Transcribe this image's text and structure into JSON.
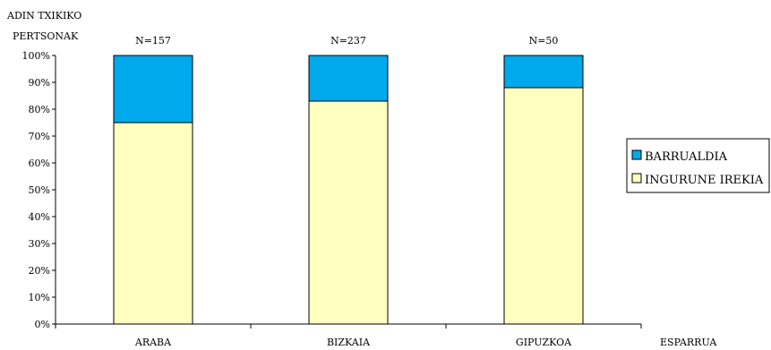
{
  "chart_data": {
    "type": "bar",
    "stacked": true,
    "percent": true,
    "ylabel": [
      "ADIN TXIKIKO",
      "PERTSONAK"
    ],
    "xlabel": "ESPARRUA",
    "categories": [
      "ARABA",
      "BIZKAIA",
      "GIPUZKOA"
    ],
    "bar_labels": [
      "N=157",
      "N=237",
      "N=50"
    ],
    "series": [
      {
        "name": "INGURUNE IREKIA",
        "values": [
          75,
          83,
          88
        ],
        "color": "#ffffc0"
      },
      {
        "name": "BARRUALDIA",
        "values": [
          25,
          17,
          12
        ],
        "color": "#00a8ec"
      }
    ],
    "ylim": [
      0,
      100
    ],
    "yticks": [
      "0%",
      "10%",
      "20%",
      "30%",
      "40%",
      "50%",
      "60%",
      "70%",
      "80%",
      "90%",
      "100%"
    ],
    "legend_position": "right",
    "grid": false
  }
}
